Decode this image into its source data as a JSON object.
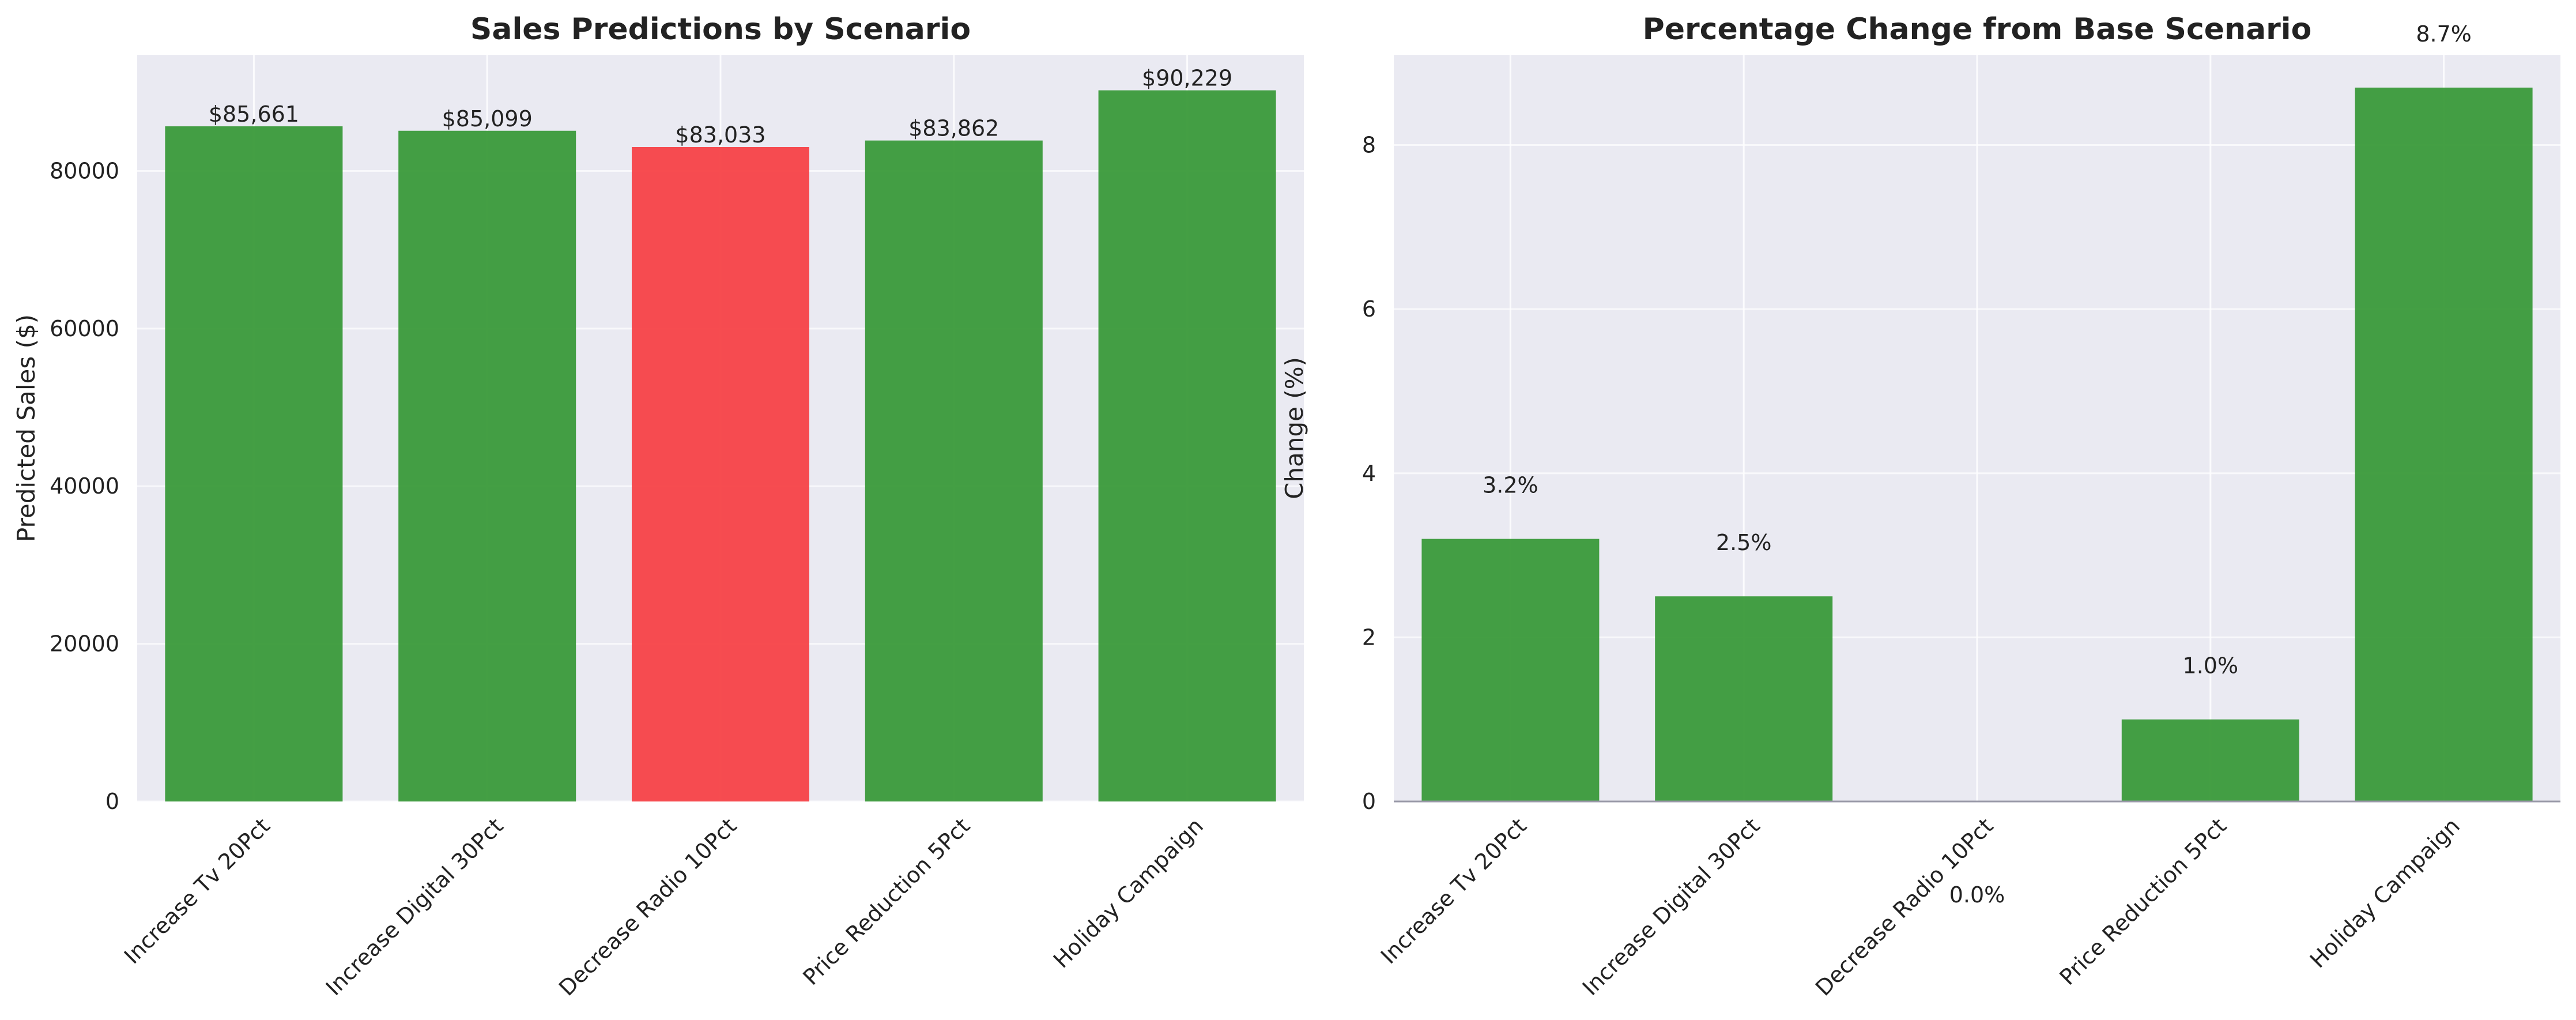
{
  "chart_data": [
    {
      "type": "bar",
      "title": "Sales Predictions by Scenario",
      "xlabel": "",
      "ylabel": "Predicted Sales ($)",
      "categories": [
        "Increase Tv 20Pct",
        "Increase Digital 30Pct",
        "Decrease Radio 10Pct",
        "Price Reduction 5Pct",
        "Holiday Campaign"
      ],
      "values": [
        85661,
        85099,
        83033,
        83862,
        90229
      ],
      "value_labels": [
        "$85,661",
        "$85,099",
        "$83,033",
        "$83,862",
        "$90,229"
      ],
      "bar_colors": [
        "#3a9a3a",
        "#3a9a3a",
        "#f74247",
        "#3a9a3a",
        "#3a9a3a"
      ],
      "ylim": [
        0,
        94739
      ],
      "yticks": [
        0,
        20000,
        40000,
        60000,
        80000
      ],
      "ytick_labels": [
        "0",
        "20000",
        "40000",
        "60000",
        "80000"
      ],
      "grid": true,
      "baseline": false
    },
    {
      "type": "bar",
      "title": "Percentage Change from Base Scenario",
      "xlabel": "",
      "ylabel": "Change (%)",
      "categories": [
        "Increase Tv 20Pct",
        "Increase Digital 30Pct",
        "Decrease Radio 10Pct",
        "Price Reduction 5Pct",
        "Holiday Campaign"
      ],
      "values": [
        3.2,
        2.5,
        0.0,
        1.0,
        8.7
      ],
      "value_labels": [
        "3.2%",
        "2.5%",
        "0.0%",
        "1.0%",
        "8.7%"
      ],
      "bar_colors": [
        "#3a9a3a",
        "#3a9a3a",
        "#3a9a3a",
        "#3a9a3a",
        "#3a9a3a"
      ],
      "ylim": [
        0,
        9.1
      ],
      "yticks": [
        0,
        2,
        4,
        6,
        8
      ],
      "ytick_labels": [
        "0",
        "2",
        "4",
        "6",
        "8"
      ],
      "grid": true,
      "baseline": true
    }
  ],
  "colors": {
    "axes_background": "#eaeaf2",
    "grid": "#ffffff",
    "positive_bar": "#3a9a3a",
    "negative_bar": "#f74247",
    "baseline": "#9a9aa8"
  }
}
